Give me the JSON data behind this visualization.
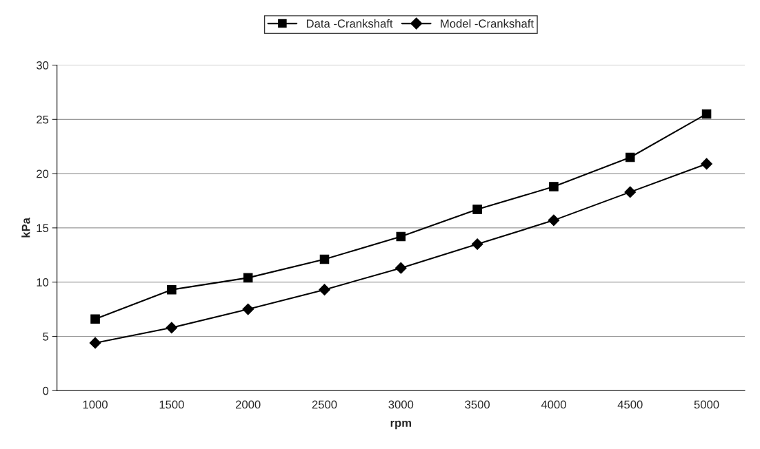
{
  "chart_data": {
    "type": "line",
    "xlabel": "rpm",
    "ylabel": "kPa",
    "categories": [
      "1000",
      "1500",
      "2000",
      "2500",
      "3000",
      "3500",
      "4000",
      "4500",
      "5000"
    ],
    "series": [
      {
        "name": "Data -Crankshaft",
        "color": "#000000",
        "marker": "square",
        "values": [
          6.6,
          9.3,
          10.4,
          12.1,
          14.2,
          16.7,
          18.8,
          21.5,
          25.5
        ]
      },
      {
        "name": "Model -Crankshaft",
        "color": "#000000",
        "marker": "diamond",
        "values": [
          4.4,
          5.8,
          7.5,
          9.3,
          11.3,
          13.5,
          15.7,
          18.3,
          20.9
        ]
      }
    ],
    "ylim": [
      0,
      30
    ],
    "yticks": [
      0,
      5,
      10,
      15,
      20,
      25,
      30
    ],
    "grid": "y",
    "legend": "top",
    "line_style": "solid"
  }
}
